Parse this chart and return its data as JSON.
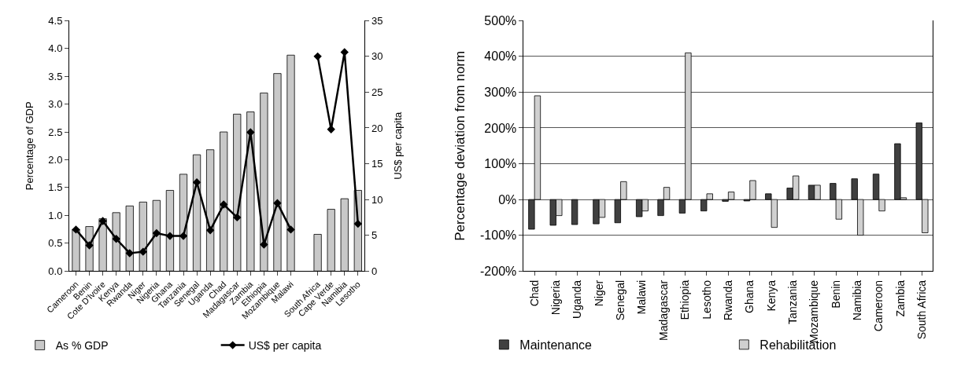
{
  "chart_data": [
    {
      "type": "bar",
      "ylabel": "Percentage of GDP",
      "y2label": "US$ per capita",
      "categories": [
        "Cameroon",
        "Benin",
        "Cote D'Ivoire",
        "Kenya",
        "Rwanda",
        "Niger",
        "Nigeria",
        "Ghana",
        "Tanzania",
        "Senegal",
        "Uganda",
        "Chad",
        "Madagascar",
        "Zambia",
        "Ethiopia",
        "Mozambique",
        "Malawi",
        null,
        "South Africa",
        "Cape Verde",
        "Namibia",
        "Lesotho"
      ],
      "series": [
        {
          "name": "As % GDP",
          "color": "#c8c8c8",
          "values": [
            0.75,
            0.8,
            0.94,
            1.05,
            1.17,
            1.24,
            1.27,
            1.45,
            1.74,
            2.09,
            2.18,
            2.5,
            2.82,
            2.86,
            3.2,
            3.55,
            3.88,
            null,
            0.66,
            1.11,
            1.3,
            1.45
          ]
        },
        {
          "name": "US$ per capita",
          "type": "line",
          "axis": "y2",
          "color": "#000000",
          "marker": "diamond",
          "line_style": "solid",
          "values": [
            5.8,
            3.6,
            7.0,
            4.5,
            2.5,
            2.7,
            5.3,
            4.9,
            4.9,
            12.4,
            5.7,
            9.3,
            7.5,
            19.4,
            3.7,
            9.5,
            5.8,
            null,
            30.0,
            19.8,
            30.6,
            6.6
          ]
        }
      ],
      "ylim": [
        0,
        4.5
      ],
      "yticks": [
        {
          "value": 0,
          "label": "0.0"
        },
        {
          "value": 0.5,
          "label": "0.5"
        },
        {
          "value": 1,
          "label": "1.0"
        },
        {
          "value": 1.5,
          "label": "1.5"
        },
        {
          "value": 2,
          "label": "2.0"
        },
        {
          "value": 2.5,
          "label": "2.5"
        },
        {
          "value": 3,
          "label": "3.0"
        },
        {
          "value": 3.5,
          "label": "3.5"
        },
        {
          "value": 4,
          "label": "4.0"
        },
        {
          "value": 4.5,
          "label": "4.5"
        }
      ],
      "y2lim": [
        0,
        35
      ],
      "y2ticks": [
        0,
        5,
        10,
        15,
        20,
        25,
        30,
        35
      ],
      "grid": false,
      "legend": "bottom"
    },
    {
      "type": "bar",
      "ylabel": "Percentage deviation from norm",
      "categories": [
        "Chad",
        "Nigeria",
        "Uganda",
        "Niger",
        "Senegal",
        "Malawi",
        "Madagascar",
        "Ethiopia",
        "Lesotho",
        "Rwanda",
        "Ghana",
        "Kenya",
        "Tanzania",
        "Mozambique",
        "Benin",
        "Namibia",
        "Cameroon",
        "Zambia",
        "South Africa"
      ],
      "series": [
        {
          "name": "Maintenance",
          "color": "#404040",
          "values": [
            -83,
            -72,
            -70,
            -68,
            -65,
            -48,
            -45,
            -38,
            -32,
            -5,
            -4,
            16,
            32,
            40,
            45,
            58,
            71,
            156,
            214
          ]
        },
        {
          "name": "Rehabilitation",
          "color": "#d0d0d0",
          "values": [
            290,
            -45,
            null,
            -50,
            50,
            -32,
            34,
            410,
            16,
            21,
            53,
            -78,
            66,
            40,
            -55,
            -100,
            -32,
            5,
            -93
          ]
        }
      ],
      "ylim": [
        -200,
        500
      ],
      "yticks": [
        {
          "value": -200,
          "label": "-200%"
        },
        {
          "value": -100,
          "label": "-100%"
        },
        {
          "value": 0,
          "label": "0%"
        },
        {
          "value": 100,
          "label": "100%"
        },
        {
          "value": 200,
          "label": "200%"
        },
        {
          "value": 300,
          "label": "300%"
        },
        {
          "value": 400,
          "label": "400%"
        },
        {
          "value": 500,
          "label": "500%"
        }
      ],
      "grid": "y",
      "legend": "bottom"
    }
  ]
}
